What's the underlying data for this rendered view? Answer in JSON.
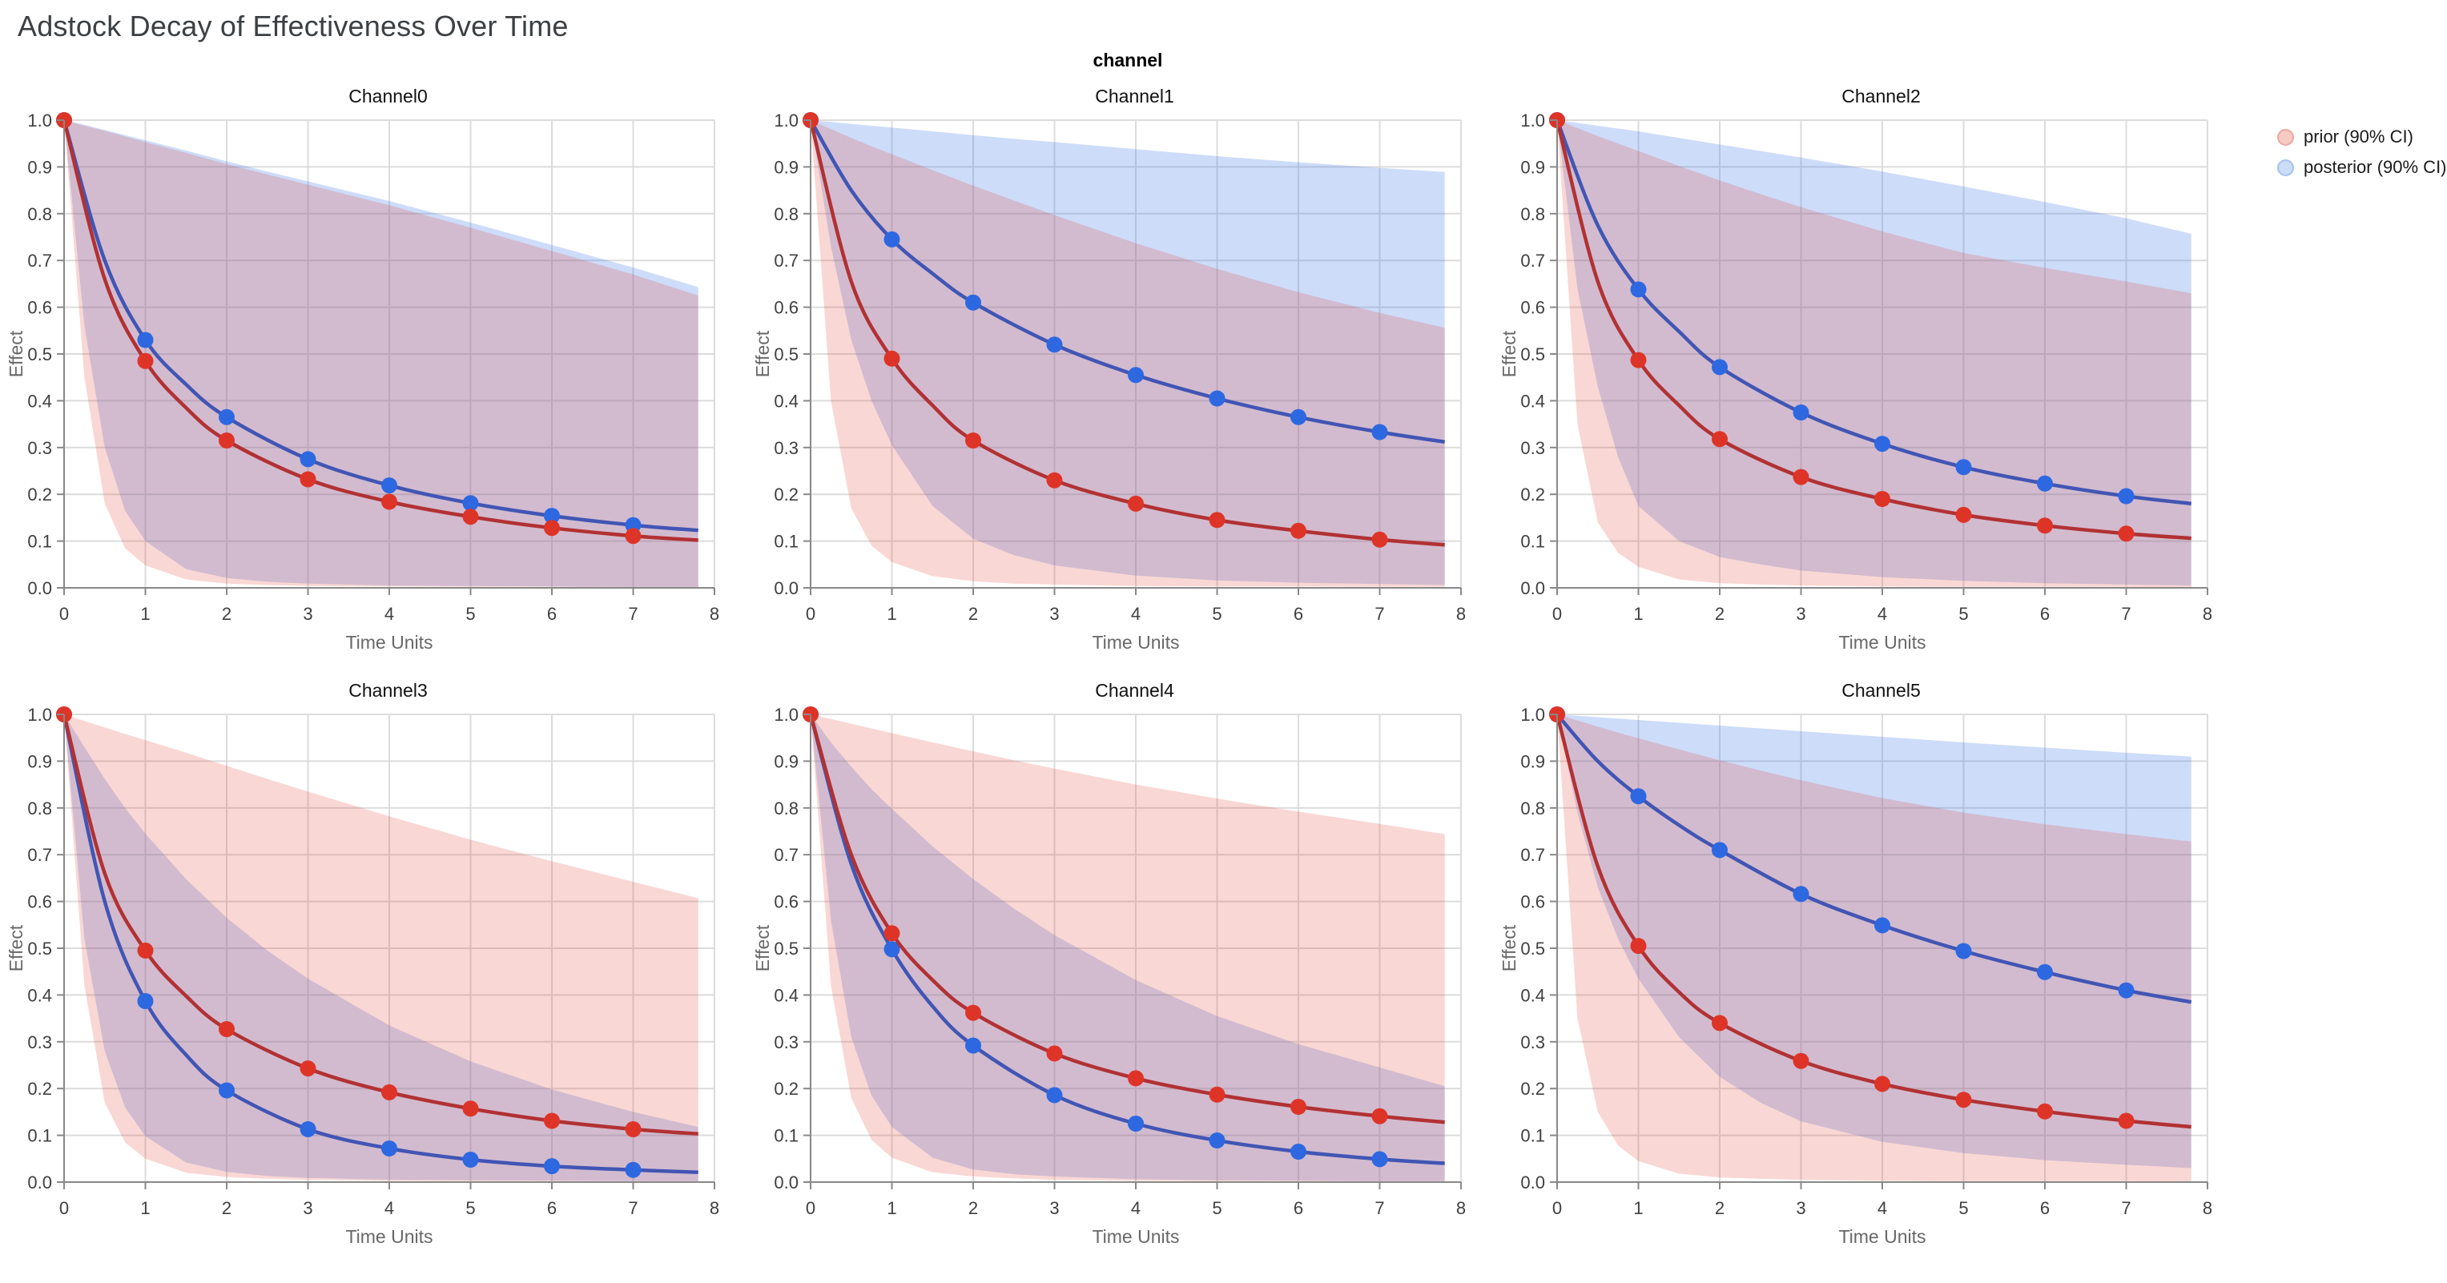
{
  "chart_data": {
    "type": "line",
    "title": "Adstock Decay of Effectiveness Over Time",
    "facet": "channel",
    "xlabel": "Time Units",
    "ylabel": "Effect",
    "xlim": [
      0,
      8
    ],
    "ylim": [
      0,
      1
    ],
    "x_ticks": [
      0,
      1,
      2,
      3,
      4,
      5,
      6,
      7,
      8
    ],
    "y_ticks": [
      0,
      0.1,
      0.2,
      0.3,
      0.4,
      0.5,
      0.6,
      0.7,
      0.8,
      0.9,
      1.0
    ],
    "grid": true,
    "legend_position": "top-right",
    "legend_items": [
      {
        "label": "prior (90% CI)",
        "fill": "#f7c9c3",
        "stroke": "#eda79e"
      },
      {
        "label": "posterior (90% CI)",
        "fill": "#cbdcf6",
        "stroke": "#a4c3ee"
      }
    ],
    "style": {
      "grid_color": "#dcdcdc",
      "axis_color": "#888888",
      "tick_label_color": "#3f3f3f",
      "axis_title_color": "#686868",
      "prior_line": "#b23133",
      "prior_marker": "#de3428",
      "posterior_line": "#4155b4",
      "posterior_marker": "#2d68e1",
      "prior_band": "rgba(228,74,59,0.22)",
      "posterior_band": "rgba(62,118,230,0.26)"
    },
    "line_x": [
      0,
      0.5,
      1,
      1.5,
      2,
      3,
      4,
      5,
      6,
      7,
      7.8
    ],
    "marker_x": [
      0,
      1,
      2,
      3,
      4,
      5,
      6,
      7
    ],
    "band_x": [
      0,
      0.25,
      0.5,
      0.75,
      1,
      1.5,
      2,
      2.5,
      3,
      4,
      5,
      6,
      7,
      7.8
    ],
    "channels": [
      {
        "name": "Channel0",
        "prior": {
          "mean": [
            1,
            0.66,
            0.485,
            0.385,
            0.315,
            0.232,
            0.184,
            0.152,
            0.128,
            0.111,
            0.102
          ],
          "upper": [
            1,
            0.988,
            0.977,
            0.965,
            0.953,
            0.93,
            0.906,
            0.884,
            0.862,
            0.818,
            0.77,
            0.72,
            0.67,
            0.625
          ],
          "lower": [
            1,
            0.45,
            0.18,
            0.085,
            0.048,
            0.018,
            0.009,
            0.006,
            0.004,
            0.003,
            0.002,
            0.002,
            0.001,
            0.001
          ]
        },
        "posterior": {
          "mean": [
            1,
            0.7,
            0.53,
            0.435,
            0.365,
            0.275,
            0.219,
            0.181,
            0.154,
            0.134,
            0.123
          ],
          "upper": [
            1,
            0.99,
            0.979,
            0.968,
            0.957,
            0.935,
            0.912,
            0.89,
            0.869,
            0.827,
            0.781,
            0.733,
            0.685,
            0.643
          ],
          "lower": [
            1,
            0.56,
            0.3,
            0.165,
            0.1,
            0.04,
            0.021,
            0.013,
            0.009,
            0.005,
            0.004,
            0.003,
            0.002,
            0.002
          ]
        }
      },
      {
        "name": "Channel1",
        "prior": {
          "mean": [
            1,
            0.655,
            0.49,
            0.39,
            0.315,
            0.23,
            0.18,
            0.145,
            0.122,
            0.103,
            0.092
          ],
          "upper": [
            1,
            0.981,
            0.962,
            0.944,
            0.927,
            0.893,
            0.86,
            0.828,
            0.797,
            0.737,
            0.682,
            0.632,
            0.588,
            0.556
          ],
          "lower": [
            1,
            0.4,
            0.17,
            0.09,
            0.055,
            0.025,
            0.014,
            0.009,
            0.007,
            0.004,
            0.003,
            0.003,
            0.002,
            0.002
          ]
        },
        "posterior": {
          "mean": [
            1,
            0.85,
            0.745,
            0.672,
            0.61,
            0.52,
            0.455,
            0.405,
            0.365,
            0.333,
            0.312
          ],
          "upper": [
            1,
            0.996,
            0.992,
            0.988,
            0.984,
            0.976,
            0.968,
            0.96,
            0.953,
            0.938,
            0.923,
            0.91,
            0.898,
            0.889
          ],
          "lower": [
            1,
            0.73,
            0.53,
            0.4,
            0.305,
            0.175,
            0.105,
            0.07,
            0.048,
            0.026,
            0.016,
            0.011,
            0.008,
            0.006
          ]
        }
      },
      {
        "name": "Channel2",
        "prior": {
          "mean": [
            1,
            0.655,
            0.487,
            0.39,
            0.318,
            0.237,
            0.19,
            0.156,
            0.133,
            0.116,
            0.106
          ],
          "upper": [
            1,
            0.983,
            0.966,
            0.95,
            0.934,
            0.902,
            0.871,
            0.842,
            0.814,
            0.762,
            0.716,
            0.684,
            0.655,
            0.63
          ],
          "lower": [
            1,
            0.35,
            0.14,
            0.075,
            0.045,
            0.018,
            0.01,
            0.007,
            0.005,
            0.003,
            0.002,
            0.002,
            0.002,
            0.001
          ]
        },
        "posterior": {
          "mean": [
            1,
            0.775,
            0.638,
            0.548,
            0.472,
            0.375,
            0.308,
            0.258,
            0.223,
            0.196,
            0.18
          ],
          "upper": [
            1,
            0.994,
            0.988,
            0.982,
            0.976,
            0.962,
            0.948,
            0.934,
            0.92,
            0.89,
            0.858,
            0.825,
            0.79,
            0.757
          ],
          "lower": [
            1,
            0.64,
            0.43,
            0.28,
            0.175,
            0.1,
            0.066,
            0.05,
            0.037,
            0.023,
            0.015,
            0.01,
            0.007,
            0.005
          ]
        }
      },
      {
        "name": "Channel3",
        "prior": {
          "mean": [
            1,
            0.66,
            0.495,
            0.398,
            0.327,
            0.243,
            0.192,
            0.157,
            0.131,
            0.113,
            0.103
          ],
          "upper": [
            1,
            0.986,
            0.972,
            0.958,
            0.945,
            0.918,
            0.89,
            0.862,
            0.835,
            0.782,
            0.732,
            0.686,
            0.642,
            0.607
          ],
          "lower": [
            1,
            0.42,
            0.17,
            0.085,
            0.05,
            0.02,
            0.011,
            0.007,
            0.005,
            0.003,
            0.002,
            0.002,
            0.002,
            0.001
          ]
        },
        "posterior": {
          "mean": [
            1,
            0.6,
            0.387,
            0.272,
            0.196,
            0.113,
            0.072,
            0.048,
            0.034,
            0.026,
            0.021
          ],
          "upper": [
            1,
            0.93,
            0.862,
            0.8,
            0.745,
            0.648,
            0.565,
            0.495,
            0.435,
            0.335,
            0.258,
            0.198,
            0.15,
            0.118
          ],
          "lower": [
            1,
            0.52,
            0.28,
            0.16,
            0.098,
            0.042,
            0.022,
            0.013,
            0.009,
            0.005,
            0.004,
            0.003,
            0.002,
            0.002
          ]
        }
      },
      {
        "name": "Channel4",
        "prior": {
          "mean": [
            1,
            0.7,
            0.532,
            0.432,
            0.362,
            0.275,
            0.222,
            0.187,
            0.161,
            0.141,
            0.128
          ],
          "upper": [
            1,
            0.99,
            0.98,
            0.97,
            0.96,
            0.94,
            0.921,
            0.902,
            0.884,
            0.85,
            0.82,
            0.792,
            0.766,
            0.744
          ],
          "lower": [
            1,
            0.42,
            0.18,
            0.09,
            0.052,
            0.021,
            0.012,
            0.008,
            0.005,
            0.003,
            0.002,
            0.002,
            0.001,
            0.001
          ]
        },
        "posterior": {
          "mean": [
            1,
            0.68,
            0.498,
            0.376,
            0.292,
            0.186,
            0.125,
            0.089,
            0.065,
            0.049,
            0.04
          ],
          "upper": [
            1,
            0.94,
            0.888,
            0.84,
            0.798,
            0.718,
            0.648,
            0.585,
            0.528,
            0.432,
            0.355,
            0.295,
            0.245,
            0.205
          ],
          "lower": [
            1,
            0.56,
            0.31,
            0.185,
            0.118,
            0.052,
            0.027,
            0.017,
            0.012,
            0.006,
            0.004,
            0.003,
            0.002,
            0.002
          ]
        }
      },
      {
        "name": "Channel5",
        "prior": {
          "mean": [
            1,
            0.675,
            0.505,
            0.406,
            0.34,
            0.259,
            0.21,
            0.176,
            0.151,
            0.131,
            0.118
          ],
          "upper": [
            1,
            0.987,
            0.974,
            0.961,
            0.949,
            0.925,
            0.902,
            0.88,
            0.859,
            0.821,
            0.79,
            0.765,
            0.744,
            0.728
          ],
          "lower": [
            1,
            0.35,
            0.15,
            0.078,
            0.045,
            0.018,
            0.01,
            0.007,
            0.005,
            0.003,
            0.002,
            0.002,
            0.002,
            0.001
          ]
        },
        "posterior": {
          "mean": [
            1,
            0.9,
            0.825,
            0.763,
            0.71,
            0.616,
            0.549,
            0.494,
            0.449,
            0.41,
            0.385
          ],
          "upper": [
            1,
            0.997,
            0.994,
            0.991,
            0.988,
            0.982,
            0.976,
            0.97,
            0.964,
            0.952,
            0.94,
            0.929,
            0.918,
            0.91
          ],
          "lower": [
            1,
            0.79,
            0.63,
            0.52,
            0.435,
            0.31,
            0.225,
            0.17,
            0.13,
            0.086,
            0.062,
            0.047,
            0.037,
            0.03
          ]
        }
      }
    ]
  }
}
